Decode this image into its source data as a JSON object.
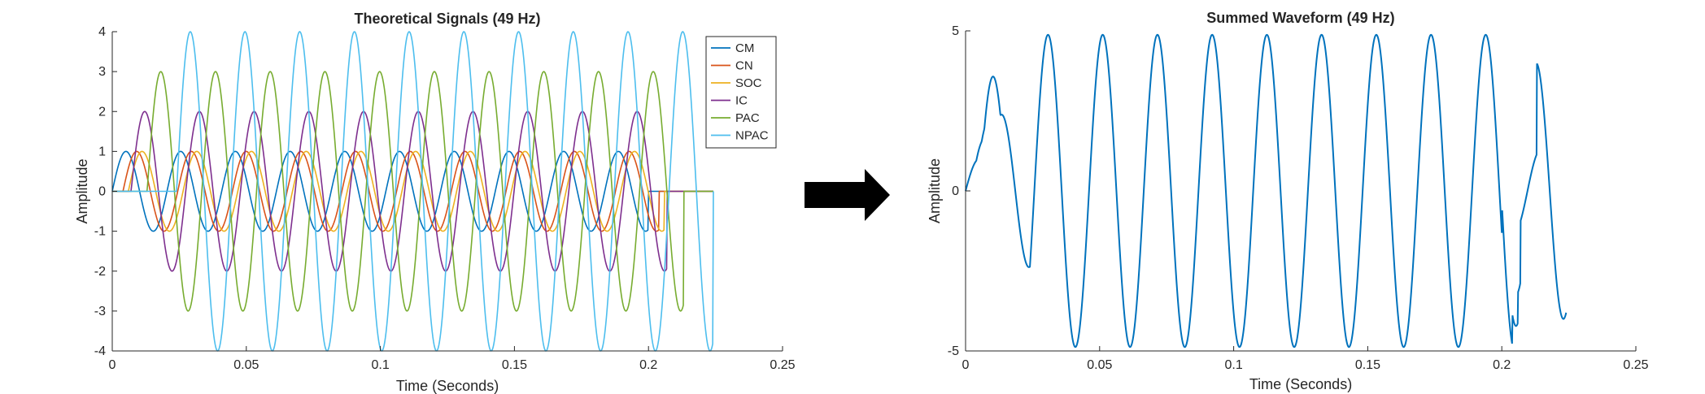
{
  "chart_data": [
    {
      "type": "line",
      "title": "Theoretical Signals (49 Hz)",
      "xlabel": "Time (Seconds)",
      "ylabel": "Amplitude",
      "xlim": [
        0,
        0.25
      ],
      "ylim": [
        -4,
        4
      ],
      "xticks": [
        0,
        0.05,
        0.1,
        0.15,
        0.2,
        0.25
      ],
      "xtick_labels": [
        "0",
        "0.05",
        "0.1",
        "0.15",
        "0.2",
        "0.25"
      ],
      "yticks": [
        -4,
        -3,
        -2,
        -1,
        0,
        1,
        2,
        3,
        4
      ],
      "ytick_labels": [
        "-4",
        "-3",
        "-2",
        "-1",
        "0",
        "1",
        "2",
        "3",
        "4"
      ],
      "frequency_hz": 49,
      "legend_position": "top-right",
      "series": [
        {
          "name": "CM",
          "color": "#0072BD",
          "amplitude": 1,
          "start": 0.0,
          "end": 0.2
        },
        {
          "name": "CN",
          "color": "#D95319",
          "amplitude": 1,
          "start": 0.004,
          "end": 0.204
        },
        {
          "name": "SOC",
          "color": "#EDB120",
          "amplitude": 1,
          "start": 0.006,
          "end": 0.206
        },
        {
          "name": "IC",
          "color": "#7E2F8E",
          "amplitude": 2,
          "start": 0.007,
          "end": 0.207
        },
        {
          "name": "PAC",
          "color": "#77AC30",
          "amplitude": 3,
          "start": 0.013,
          "end": 0.213
        },
        {
          "name": "NPAC",
          "color": "#4DBEEE",
          "amplitude": 4,
          "start": 0.024,
          "end": 0.224
        }
      ]
    },
    {
      "type": "line",
      "title": "Summed Waveform (49 Hz)",
      "xlabel": "Time (Seconds)",
      "ylabel": "Amplitude",
      "xlim": [
        0,
        0.25
      ],
      "ylim": [
        -5,
        5
      ],
      "xticks": [
        0,
        0.05,
        0.1,
        0.15,
        0.2,
        0.25
      ],
      "xtick_labels": [
        "0",
        "0.05",
        "0.1",
        "0.15",
        "0.2",
        "0.25"
      ],
      "yticks": [
        -5,
        0,
        5
      ],
      "ytick_labels": [
        "-5",
        "0",
        "5"
      ],
      "color": "#0072BD",
      "t_end": 0.224
    }
  ],
  "arrow": {
    "color": "#000000",
    "icon": "right-arrow-icon"
  }
}
